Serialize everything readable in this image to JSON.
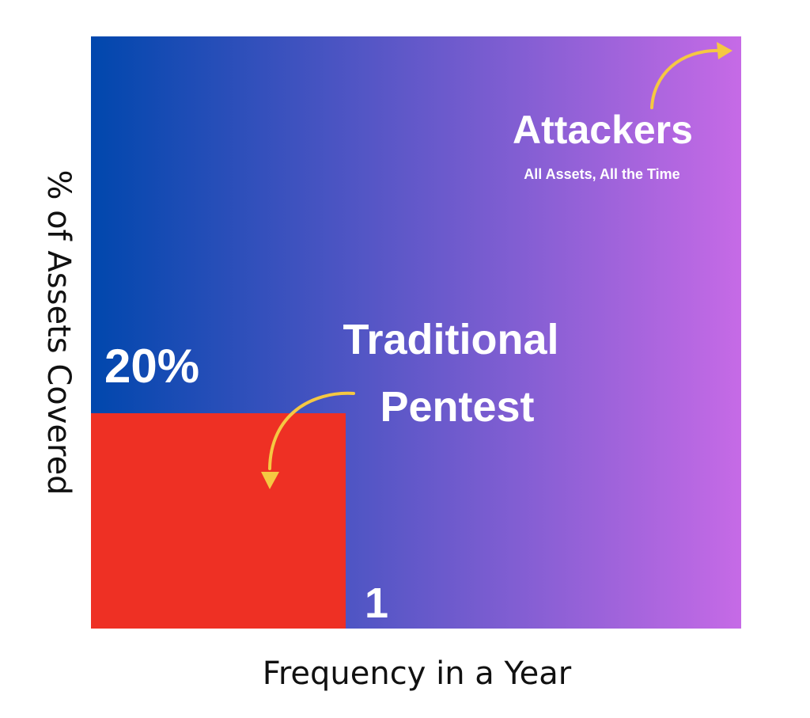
{
  "chart_data": {
    "type": "area",
    "xlabel": "Frequency in a Year",
    "ylabel": "% of Assets Covered",
    "background_gradient": [
      "#0047ad",
      "#c66ae6"
    ],
    "series": [
      {
        "name": "Traditional Pentest",
        "frequency_label": "1",
        "coverage_label": "20%",
        "color": "#ee3024"
      },
      {
        "name": "Attackers",
        "description": "All Assets, All the Time"
      }
    ],
    "annotations": {
      "pentest_title_line1": "Traditional",
      "pentest_title_line2": "Pentest",
      "attackers_title": "Attackers",
      "attackers_subtitle": "All Assets, All the Time",
      "arrow_color": "#f5c842"
    }
  }
}
